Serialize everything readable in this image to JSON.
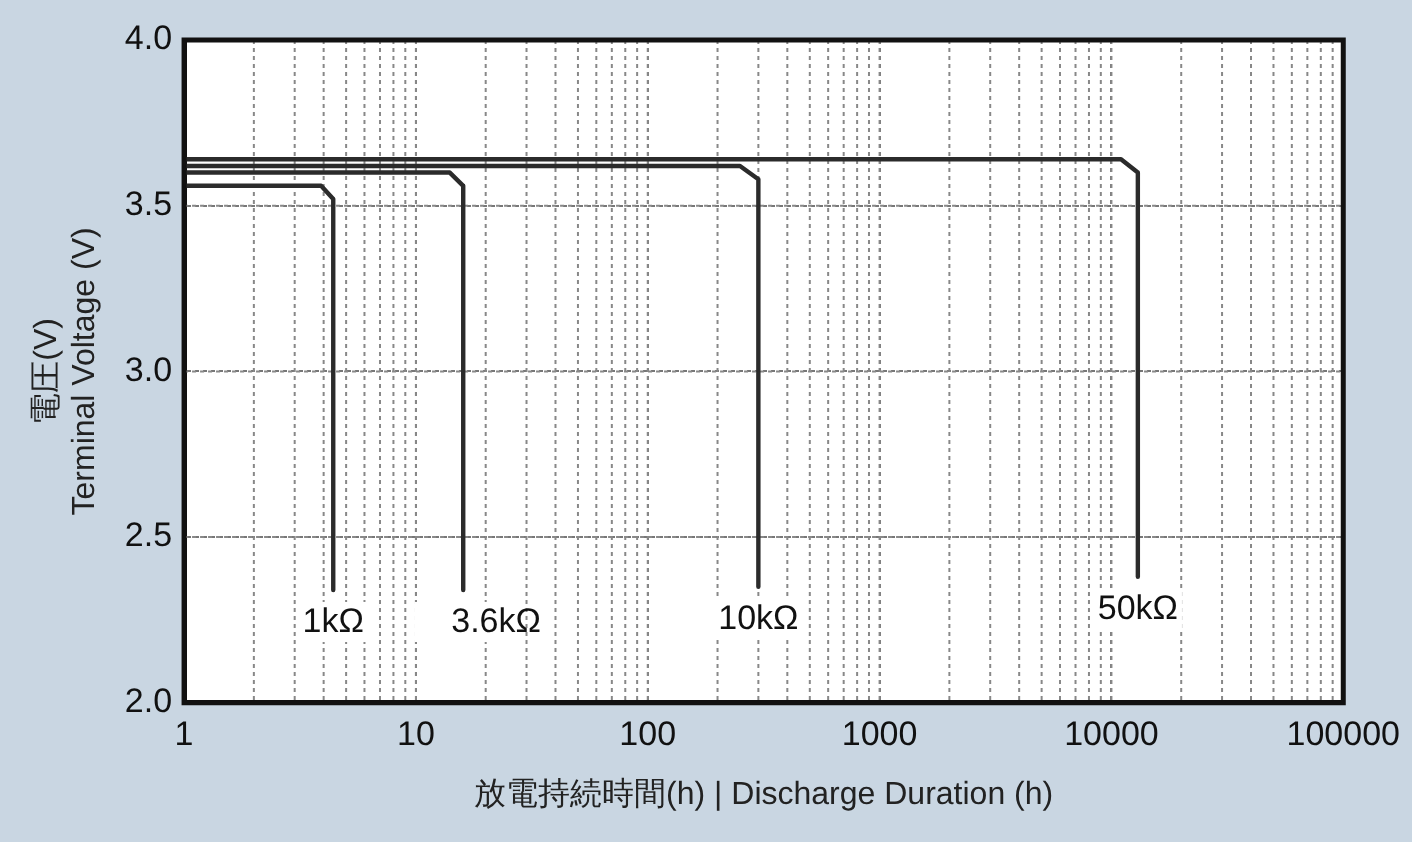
{
  "chart_data": {
    "type": "line",
    "xlabel": "放電持続時間(h) | Discharge Duration (h)",
    "ylabel": "電圧(V)\nTerminal Voltage (V)",
    "log": "x",
    "xlim": [
      1,
      100000
    ],
    "xticks": [
      1,
      10,
      100,
      1000,
      10000,
      100000
    ],
    "ylim": [
      2.0,
      4.0
    ],
    "yticks": [
      {
        "value": 2,
        "label": "2.0"
      },
      {
        "value": 2.5,
        "label": "2.5"
      },
      {
        "value": 3,
        "label": "3.0"
      },
      {
        "value": 3.5,
        "label": "3.5"
      },
      {
        "value": 4,
        "label": "4.0"
      }
    ],
    "grid": true,
    "legend": false,
    "marker": "none",
    "line_style": "solid",
    "series": [
      {
        "name": "1kΩ",
        "color": "#2b2b2b",
        "x": [
          1,
          3.9,
          4.4,
          4.4
        ],
        "values": [
          3.56,
          3.56,
          3.52,
          2.34
        ]
      },
      {
        "name": "3.6kΩ",
        "color": "#2b2b2b",
        "x": [
          1,
          14,
          16,
          16
        ],
        "values": [
          3.6,
          3.6,
          3.56,
          2.34
        ]
      },
      {
        "name": "10kΩ",
        "color": "#2b2b2b",
        "x": [
          1,
          250,
          300,
          300
        ],
        "values": [
          3.62,
          3.62,
          3.58,
          2.35
        ]
      },
      {
        "name": "50kΩ",
        "color": "#2b2b2b",
        "x": [
          1,
          11000,
          13000,
          13000
        ],
        "values": [
          3.64,
          3.64,
          3.6,
          2.38
        ]
      }
    ]
  }
}
